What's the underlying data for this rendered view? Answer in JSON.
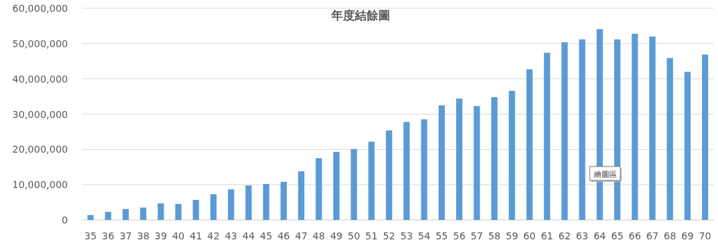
{
  "chart_data": {
    "type": "bar",
    "title": "年度結餘圖",
    "categories": [
      "35",
      "36",
      "37",
      "38",
      "39",
      "40",
      "41",
      "42",
      "43",
      "44",
      "45",
      "46",
      "47",
      "48",
      "49",
      "50",
      "51",
      "52",
      "53",
      "54",
      "55",
      "56",
      "57",
      "58",
      "59",
      "60",
      "61",
      "62",
      "63",
      "64",
      "65",
      "66",
      "67",
      "68",
      "69",
      "70"
    ],
    "values": [
      1400000,
      2300000,
      3100000,
      3500000,
      4700000,
      4500000,
      5700000,
      7300000,
      8700000,
      9800000,
      10200000,
      10800000,
      13800000,
      17500000,
      19300000,
      20100000,
      22200000,
      25400000,
      27800000,
      28500000,
      32500000,
      34400000,
      32300000,
      34800000,
      36600000,
      42700000,
      47400000,
      50400000,
      51200000,
      54100000,
      51200000,
      52800000,
      52000000,
      45900000,
      42000000,
      46900000
    ],
    "color": "#5b9bd5",
    "ylim": [
      0,
      60000000
    ],
    "yticks": [
      {
        "value": 0,
        "label": "0"
      },
      {
        "value": 10000000,
        "label": "10,000,000"
      },
      {
        "value": 20000000,
        "label": "20,000,000"
      },
      {
        "value": 30000000,
        "label": "30,000,000"
      },
      {
        "value": 40000000,
        "label": "40,000,000"
      },
      {
        "value": 50000000,
        "label": "50,000,000"
      },
      {
        "value": 60000000,
        "label": "60,000,000"
      }
    ],
    "grid": "y",
    "annotations": [
      "繪圖區"
    ]
  }
}
